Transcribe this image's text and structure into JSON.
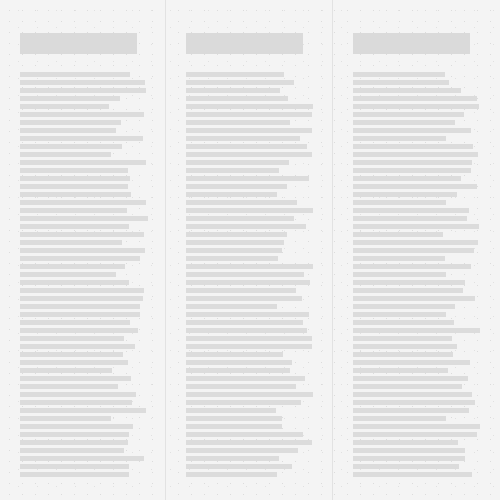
{
  "document": {
    "columns": [
      {
        "name": "column-1",
        "line_count": 51
      },
      {
        "name": "column-2",
        "line_count": 51
      },
      {
        "name": "column-3",
        "line_count": 51
      }
    ]
  }
}
